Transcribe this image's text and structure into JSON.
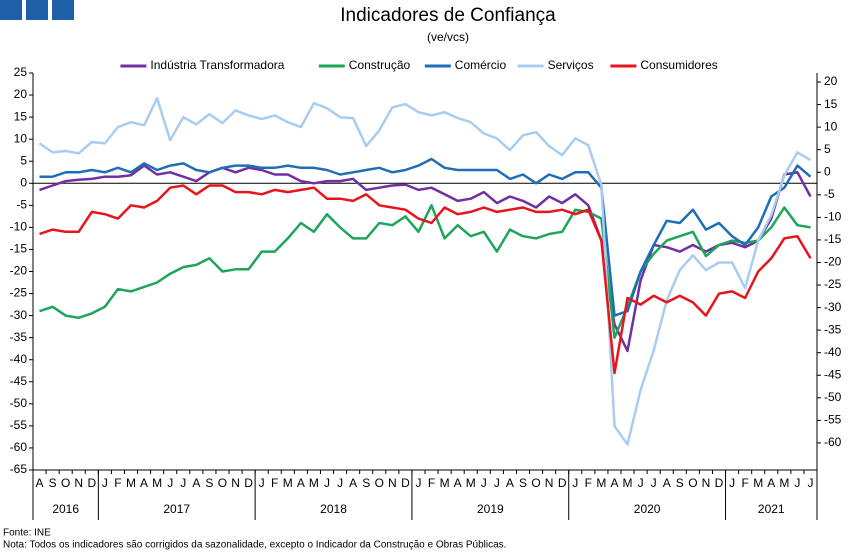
{
  "chart_data": {
    "type": "line",
    "title": "Indicadores de Confiança",
    "subtitle": "(ve/vcs)",
    "source": "Fonte: INE",
    "note": "Nota: Todos os indicadores são corrigidos da sazonalidade, excepto o Indicador da Construção e Obras Públicas.",
    "categories": [
      "A",
      "S",
      "O",
      "N",
      "D",
      "J",
      "F",
      "M",
      "A",
      "M",
      "J",
      "J",
      "A",
      "S",
      "O",
      "N",
      "D",
      "J",
      "F",
      "M",
      "A",
      "M",
      "J",
      "J",
      "A",
      "S",
      "O",
      "N",
      "D",
      "J",
      "F",
      "M",
      "A",
      "M",
      "J",
      "J",
      "A",
      "S",
      "O",
      "N",
      "D",
      "J",
      "F",
      "M",
      "A",
      "M",
      "J",
      "J",
      "A",
      "S",
      "O",
      "N",
      "D",
      "J",
      "F",
      "M",
      "A",
      "M",
      "J",
      "J"
    ],
    "years": [
      "2016",
      "2017",
      "2018",
      "2019",
      "2020",
      "2021"
    ],
    "ylim": [
      -65,
      25
    ],
    "yticks": [
      -65,
      -60,
      -55,
      -50,
      -45,
      -40,
      -35,
      -30,
      -25,
      -20,
      -15,
      -10,
      -5,
      0,
      5,
      10,
      15,
      20,
      25
    ],
    "y2lim": [
      -66,
      22
    ],
    "y2ticks": [
      -60,
      -55,
      -50,
      -45,
      -40,
      -35,
      -30,
      -25,
      -20,
      -15,
      -10,
      -5,
      0,
      5,
      10,
      15,
      20
    ],
    "series": [
      {
        "name": "Indústria Transformadora",
        "color": "#7030a0",
        "values": [
          -1.5,
          -0.5,
          0.5,
          0.8,
          1,
          1.5,
          1.5,
          1.8,
          4,
          2,
          2.5,
          1.5,
          0.5,
          2.5,
          3.5,
          2.5,
          3.5,
          3,
          2,
          2,
          0.5,
          0,
          0.5,
          0.5,
          1,
          -1.5,
          -1,
          -0.5,
          -0.3,
          -1.5,
          -1,
          -2.5,
          -4,
          -3.5,
          -2,
          -4.5,
          -3,
          -4,
          -5.5,
          -3,
          -4.5,
          -2.5,
          -5,
          -13,
          -32,
          -38,
          -22,
          -14,
          -14.5,
          -15.5,
          -14,
          -15.5,
          -14,
          -13.5,
          -14.5,
          -13,
          -8,
          2,
          2.5,
          -3
        ]
      },
      {
        "name": "Construção",
        "color": "#1fa55a",
        "values": [
          -29,
          -28,
          -30,
          -30.5,
          -29.5,
          -28,
          -24,
          -24.5,
          -23.5,
          -22.5,
          -20.5,
          -19,
          -18.5,
          -17,
          -20,
          -19.5,
          -19.5,
          -15.5,
          -15.5,
          -12.5,
          -9,
          -11,
          -7,
          -10,
          -12.5,
          -12.5,
          -9,
          -9.5,
          -7.5,
          -11,
          -5,
          -12.5,
          -9.5,
          -12,
          -11,
          -15.5,
          -10.5,
          -12,
          -12.5,
          -11.5,
          -11,
          -6,
          -6.5,
          -8,
          -35,
          -28,
          -20,
          -16,
          -13,
          -12,
          -11,
          -16.5,
          -14,
          -13,
          -13.5,
          -13,
          -10,
          -5.5,
          -9.5,
          -10
        ]
      },
      {
        "name": "Comércio",
        "color": "#1f6eb5",
        "values": [
          1.5,
          1.5,
          2.5,
          2.5,
          3,
          2.5,
          3.5,
          2.5,
          4.5,
          3,
          4,
          4.5,
          3,
          2.5,
          3.5,
          4,
          4,
          3.5,
          3.5,
          4,
          3.5,
          3.5,
          3,
          2,
          2.5,
          3,
          3.5,
          2.5,
          3,
          4,
          5.5,
          3.5,
          3,
          3,
          3,
          3,
          1,
          2,
          0,
          2,
          1,
          2.5,
          2.5,
          -1,
          -30,
          -29,
          -20,
          -14,
          -8.5,
          -9,
          -6,
          -10.5,
          -9,
          -12,
          -14,
          -10,
          -3,
          -1,
          4,
          1.5
        ]
      },
      {
        "name": "Serviços",
        "color": "#a9cdf0",
        "axis": "y2",
        "values": [
          6.4,
          4.4,
          4.7,
          4.2,
          6.7,
          6.4,
          10,
          11.1,
          10.4,
          16.4,
          7.1,
          12.2,
          10.6,
          12.9,
          10.9,
          13.7,
          12.6,
          11.8,
          12.6,
          11.1,
          10,
          15.3,
          14.2,
          12.2,
          12,
          5.8,
          9.3,
          14.4,
          15.1,
          13.3,
          12.6,
          13.3,
          12,
          11.1,
          8.6,
          7.5,
          4.9,
          8.2,
          8.9,
          5.8,
          3.8,
          7.5,
          6,
          -2.9,
          -56.3,
          -60.3,
          -48.3,
          -39.5,
          -28.4,
          -21.7,
          -18.4,
          -21.7,
          -20,
          -20,
          -25.7,
          -15.1,
          -9.5,
          -0.7,
          4.4,
          2.7
        ]
      },
      {
        "name": "Consumidores",
        "color": "#e8141c",
        "values": [
          -11.5,
          -10.5,
          -11,
          -11,
          -6.5,
          -7,
          -8,
          -5,
          -5.5,
          -4,
          -1,
          -0.5,
          -2.5,
          -0.5,
          -0.5,
          -2,
          -2,
          -2.5,
          -1.5,
          -2,
          -1.5,
          -1,
          -3.5,
          -3.5,
          -4,
          -2.5,
          -5,
          -5.5,
          -6,
          -8,
          -9,
          -5.5,
          -7,
          -6.5,
          -5.5,
          -6.5,
          -6,
          -5.5,
          -6.5,
          -6.5,
          -6,
          -7,
          -6,
          -13,
          -43,
          -26,
          -27.5,
          -25.5,
          -27,
          -25.5,
          -27,
          -30,
          -25,
          -24.5,
          -26,
          -20,
          -17,
          -12.5,
          -12,
          -17
        ]
      }
    ]
  }
}
